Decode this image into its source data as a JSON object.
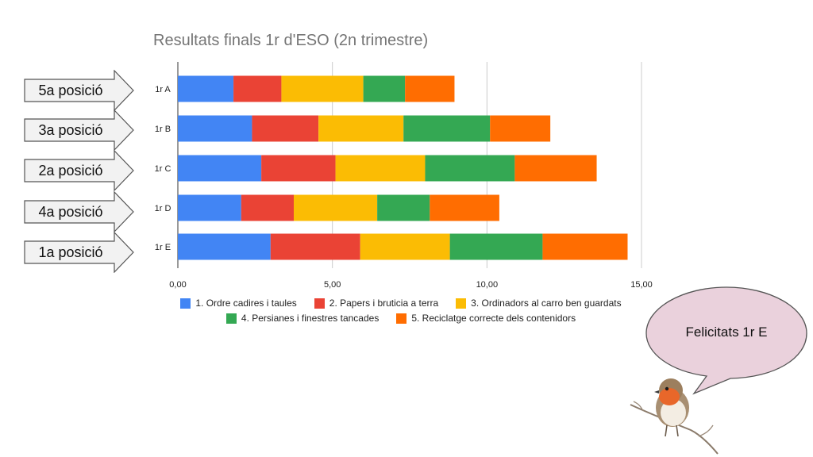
{
  "chart_data": {
    "type": "bar",
    "orientation": "horizontal",
    "stacked": true,
    "title": "Resultats finals 1r d'ESO (2n trimestre)",
    "categories": [
      "1r A",
      "1r B",
      "1r C",
      "1r D",
      "1r E"
    ],
    "series": [
      {
        "name": "1. Ordre cadires i taules",
        "color": "#4285f4",
        "values": [
          1.8,
          2.4,
          2.7,
          2.05,
          3.0
        ]
      },
      {
        "name": "2. Papers i bruticia a terra",
        "color": "#ea4335",
        "values": [
          1.55,
          2.15,
          2.4,
          1.7,
          2.9
        ]
      },
      {
        "name": "3. Ordinadors al carro ben guardats",
        "color": "#fbbc04",
        "values": [
          2.65,
          2.75,
          2.9,
          2.7,
          2.9
        ]
      },
      {
        "name": "4. Persianes i finestres tancades",
        "color": "#34a853",
        "values": [
          1.35,
          2.8,
          2.9,
          1.7,
          3.0
        ]
      },
      {
        "name": "5. Reciclatge correcte dels contenidors",
        "color": "#ff6d01",
        "values": [
          1.6,
          1.95,
          2.65,
          2.25,
          2.75
        ]
      }
    ],
    "xticks": [
      "0,00",
      "5,00",
      "10,00",
      "15,00"
    ],
    "xtick_values": [
      0,
      5,
      10,
      15
    ],
    "xlim": [
      0,
      15
    ],
    "grid": true,
    "legend": "bottom"
  },
  "rankings": [
    {
      "category": "1r A",
      "label": "5a posició"
    },
    {
      "category": "1r B",
      "label": "3a posició"
    },
    {
      "category": "1r C",
      "label": "2a posició"
    },
    {
      "category": "1r D",
      "label": "4a posició"
    },
    {
      "category": "1r E",
      "label": "1a posició"
    }
  ],
  "bubble": {
    "text": "Felicitats 1r E"
  },
  "colors": {
    "arrow_fill": "#f2f2f2",
    "arrow_stroke": "#555555",
    "bubble_fill": "#ead1dc",
    "bubble_stroke": "#555555"
  }
}
